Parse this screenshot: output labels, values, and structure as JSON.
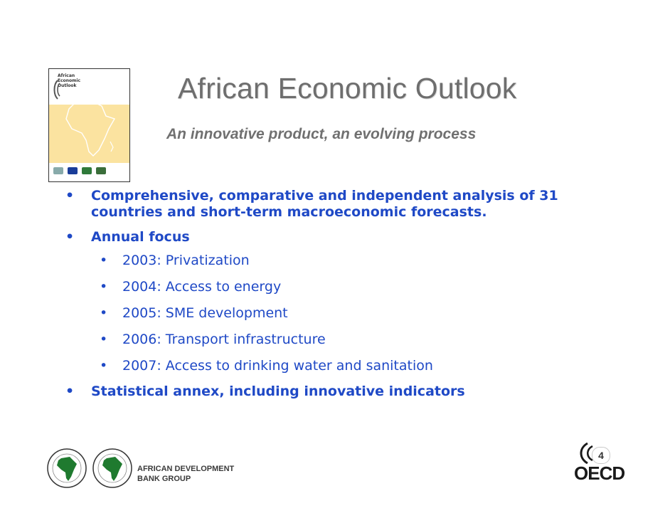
{
  "cover": {
    "title_lines": "African\nEconomic\nOutlook",
    "colors": {
      "band": "#fbe3a0",
      "map_stroke": "#ffffff"
    }
  },
  "slide": {
    "title": "African Economic Outlook",
    "subtitle": "An innovative product, an evolving process",
    "accent_color": "#1f49c6",
    "bullets": [
      {
        "text": "Comprehensive, comparative and independent analysis of 31 countries and short-term macroeconomic forecasts."
      },
      {
        "text": "Annual focus"
      },
      {
        "text": "Statistical annex, including innovative indicators"
      }
    ],
    "annual_focus": [
      "2003: Privatization",
      "2004: Access to energy",
      "2005: SME development",
      "2006: Transport infrastructure",
      "2007: Access to drinking water and sanitation"
    ]
  },
  "footer": {
    "afdb_line1": "AFRICAN DEVELOPMENT",
    "afdb_line2": "BANK GROUP",
    "oecd_logo": "OECD",
    "page_number": "4",
    "icons": [
      "afdb-seal-icon",
      "oecd-logo-icon"
    ]
  }
}
